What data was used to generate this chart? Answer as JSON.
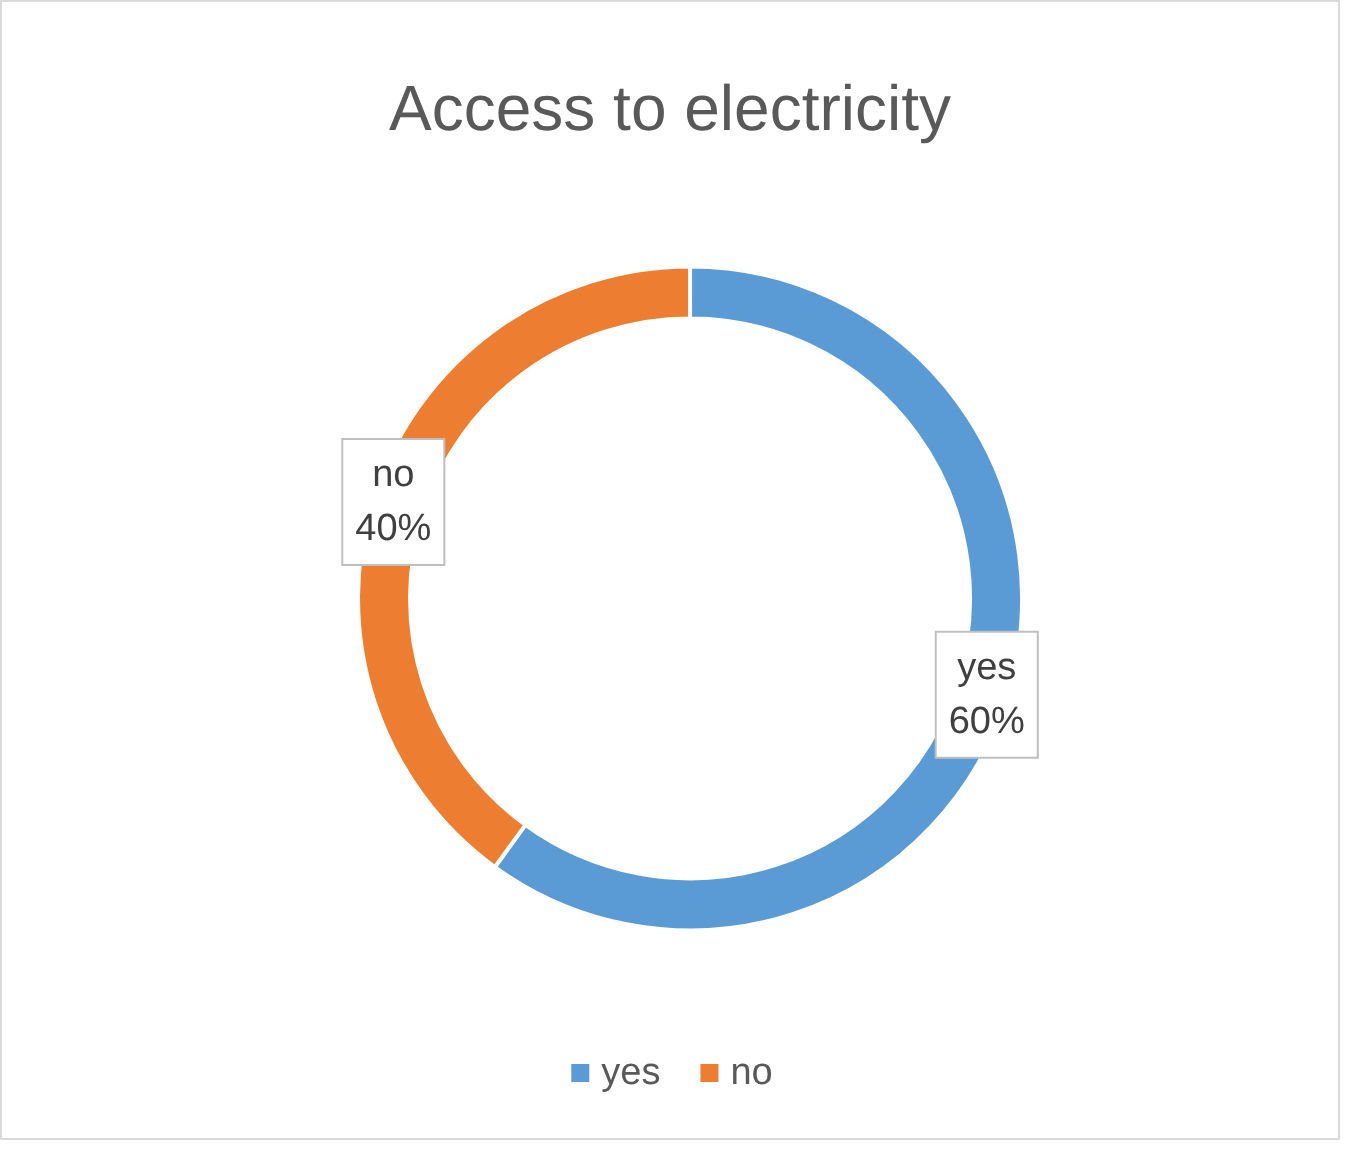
{
  "chart_data": {
    "type": "donut",
    "title": "Access to electricity",
    "categories": [
      "yes",
      "no"
    ],
    "values": [
      60,
      40
    ],
    "colors": [
      "#5b9bd5",
      "#ed7d31"
    ],
    "value_labels": [
      "60%",
      "40%"
    ],
    "legend": "bottom"
  }
}
